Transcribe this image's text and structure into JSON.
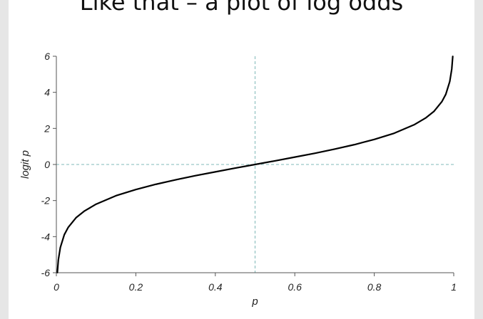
{
  "slide": {
    "title": "Like that – a plot of log odds"
  },
  "chart_data": {
    "type": "line",
    "title": "",
    "xlabel": "p",
    "ylabel": "logit p",
    "xlim": [
      0,
      1
    ],
    "ylim": [
      -6,
      6
    ],
    "x_ticks": [
      0,
      0.2,
      0.4,
      0.6,
      0.8,
      1
    ],
    "x_tick_labels": [
      "0",
      "0.2",
      "0.4",
      "0.6",
      "0.8",
      "1"
    ],
    "y_ticks": [
      -6,
      -4,
      -2,
      0,
      2,
      4,
      6
    ],
    "y_tick_labels": [
      "-6",
      "-4",
      "-2",
      "0",
      "2",
      "4",
      "6"
    ],
    "grid": false,
    "reference_lines": [
      {
        "orientation": "vertical",
        "value": 0.5
      },
      {
        "orientation": "horizontal",
        "value": 0
      }
    ],
    "series": [
      {
        "function": "logit",
        "x": [
          0.0025,
          0.005,
          0.01,
          0.02,
          0.03,
          0.05,
          0.07,
          0.1,
          0.15,
          0.2,
          0.25,
          0.3,
          0.35,
          0.4,
          0.45,
          0.5,
          0.55,
          0.6,
          0.65,
          0.7,
          0.75,
          0.8,
          0.85,
          0.9,
          0.93,
          0.95,
          0.97,
          0.98,
          0.99,
          0.995,
          0.9975
        ],
        "y": [
          -5.99,
          -5.29,
          -4.6,
          -3.89,
          -3.48,
          -2.94,
          -2.59,
          -2.2,
          -1.73,
          -1.39,
          -1.1,
          -0.85,
          -0.62,
          -0.41,
          -0.2,
          0,
          0.2,
          0.41,
          0.62,
          0.85,
          1.1,
          1.39,
          1.73,
          2.2,
          2.59,
          2.94,
          3.48,
          3.89,
          4.6,
          5.29,
          5.99
        ]
      }
    ],
    "colors": {
      "curve": "#000000",
      "reference": "#7fb8b8",
      "axis": "#555555"
    }
  }
}
